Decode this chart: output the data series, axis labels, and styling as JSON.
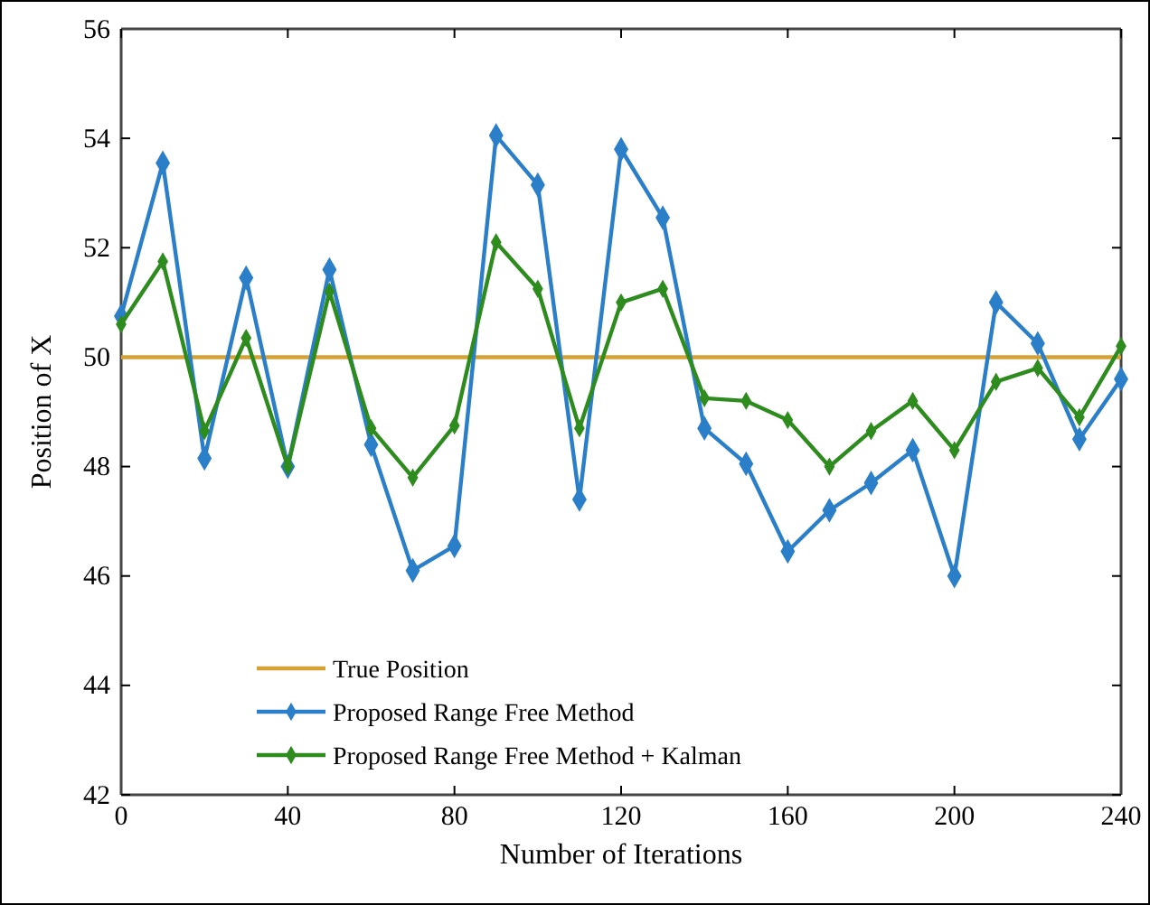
{
  "chart_data": {
    "type": "line",
    "xlabel": "Number of Iterations",
    "ylabel": "Position of X",
    "x": [
      0,
      10,
      20,
      30,
      40,
      50,
      60,
      70,
      80,
      90,
      100,
      110,
      120,
      130,
      140,
      150,
      160,
      170,
      180,
      190,
      200,
      210,
      220,
      230,
      240
    ],
    "xlim": [
      0,
      240
    ],
    "xticks": [
      0,
      40,
      80,
      120,
      160,
      200,
      240
    ],
    "ylim": [
      42,
      56
    ],
    "yticks": [
      42,
      44,
      46,
      48,
      50,
      52,
      54,
      56
    ],
    "legend": "bottom left",
    "grid": false,
    "marker": "diamond",
    "line_style": "solid",
    "series": [
      {
        "name": "True Position",
        "color": "#d4a235",
        "x": [
          0,
          240
        ],
        "values": [
          50,
          50
        ],
        "marker": "none"
      },
      {
        "name": "Proposed Range Free Method",
        "color": "#2a7fc8",
        "values": [
          50.75,
          53.55,
          48.15,
          51.45,
          48.0,
          51.6,
          48.4,
          46.1,
          46.55,
          54.05,
          53.15,
          47.4,
          53.8,
          52.55,
          48.7,
          48.05,
          46.45,
          47.2,
          47.7,
          48.3,
          46.0,
          51.0,
          50.25,
          48.5,
          49.6
        ]
      },
      {
        "name": "Proposed Range Free Method + Kalman",
        "color": "#2e8b1e",
        "values": [
          50.6,
          51.75,
          48.65,
          50.35,
          48.0,
          51.2,
          48.7,
          47.8,
          48.75,
          52.1,
          51.25,
          48.7,
          51.0,
          51.25,
          49.25,
          49.2,
          48.85,
          48.0,
          48.65,
          49.2,
          48.3,
          49.55,
          49.8,
          48.9,
          50.2
        ]
      }
    ]
  }
}
